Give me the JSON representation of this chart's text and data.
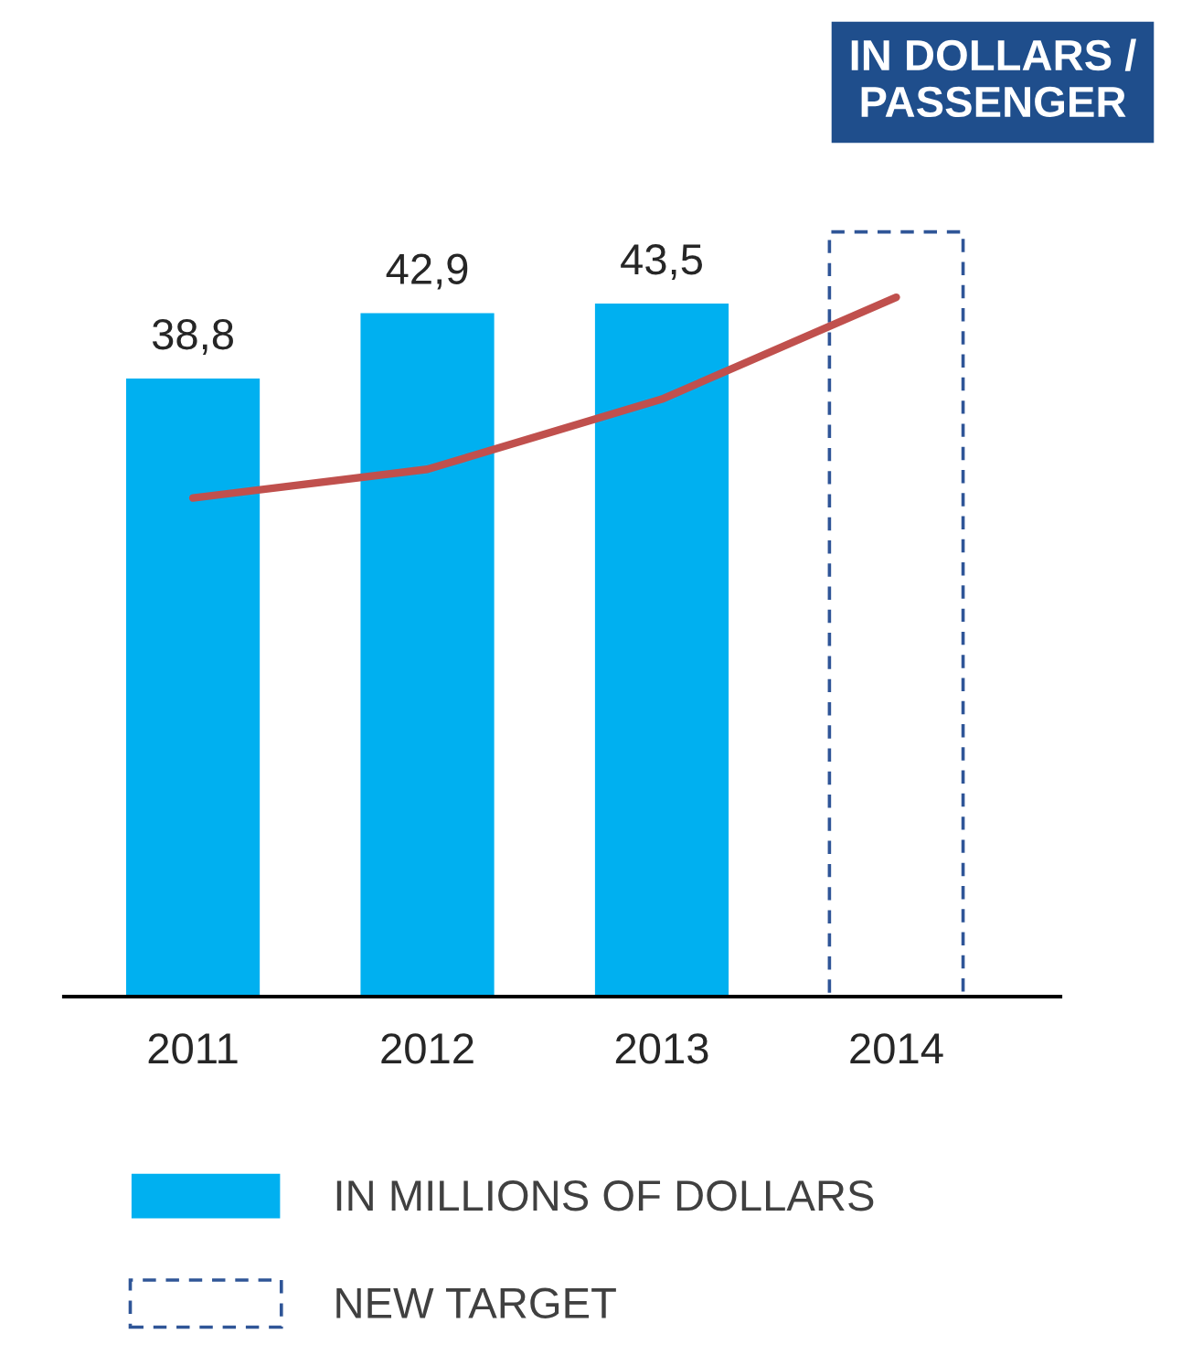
{
  "chart_data": {
    "type": "bar",
    "categories": [
      "2011",
      "2012",
      "2013",
      "2014"
    ],
    "series": [
      {
        "name": "IN MILLIONS OF DOLLARS",
        "color": "#00b0f0",
        "values": [
          38.8,
          42.9,
          43.5,
          null
        ],
        "value_labels": [
          "38,8",
          "42,9",
          "43,5",
          null
        ]
      },
      {
        "name": "NEW TARGET",
        "color": "#2f5597",
        "line_style": "dashed",
        "values": [
          null,
          null,
          null,
          48.0
        ]
      },
      {
        "type": "line",
        "color": "#c0504d",
        "values": [
          31.3,
          33.1,
          37.5,
          43.9
        ]
      }
    ],
    "annotations": [
      "IN DOLLARS / PASSENGER"
    ],
    "legend": "bottom",
    "grid": false
  }
}
